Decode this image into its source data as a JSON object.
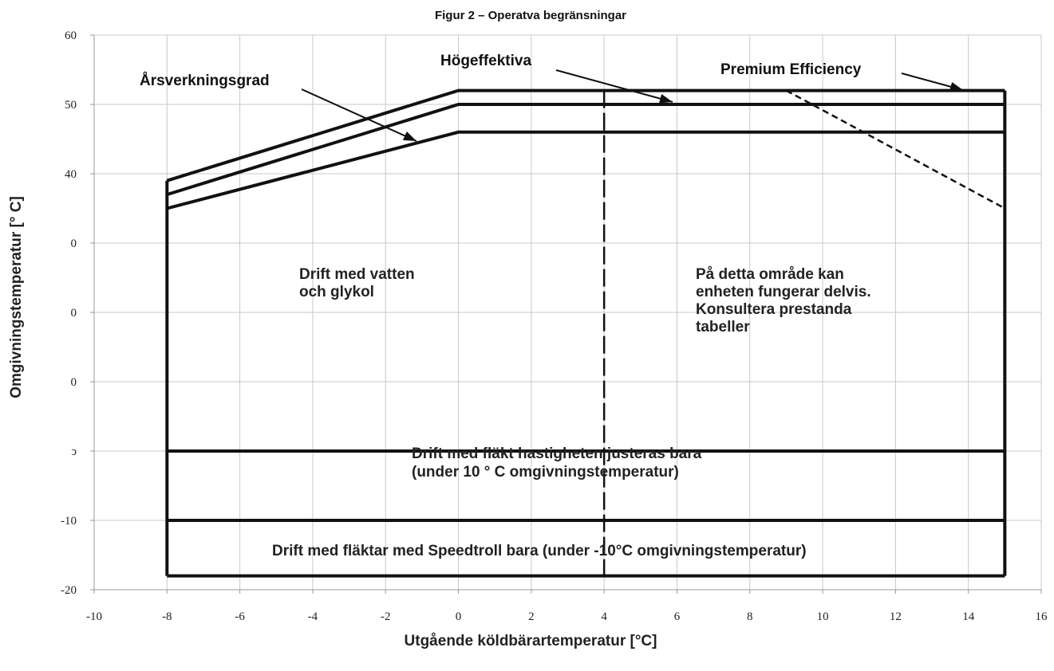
{
  "chart_data": {
    "type": "line",
    "title": "Figur 2 – Operatva begränsningar",
    "xlabel": "Utgående köldbärartemperatur [°C]",
    "ylabel": "Omgivningstemperatur [° C]",
    "xlim": [
      -10,
      16
    ],
    "ylim": [
      -20,
      60
    ],
    "x_ticks": [
      "-10",
      "-8",
      "-6",
      "-4",
      "-2",
      "0",
      "2",
      "4",
      "6",
      "8",
      "10",
      "12",
      "14",
      "16"
    ],
    "y_ticks": [
      "60",
      "50",
      "40",
      "0",
      "0",
      "0",
      "ↄ",
      "-10",
      "-20"
    ],
    "grid": true,
    "series": [
      {
        "name": "Årsverkningsgrad",
        "x": [
          -8,
          0,
          15
        ],
        "y": [
          35,
          46,
          46
        ]
      },
      {
        "name": "Högeffektiva",
        "x": [
          -8,
          0,
          15
        ],
        "y": [
          37,
          50,
          50
        ]
      },
      {
        "name": "Premium Efficiency",
        "x": [
          -8,
          0,
          15
        ],
        "y": [
          39,
          52,
          52
        ]
      },
      {
        "name": "",
        "style": "dashed",
        "x": [
          9,
          15
        ],
        "y": [
          52,
          35
        ]
      }
    ],
    "boundaries": {
      "envelope_bottom": -18,
      "envelope_left": -8,
      "envelope_right": 15,
      "line_glycol": 0,
      "line_speedtroll": -10,
      "partial_operation_x": 4
    },
    "region_labels": [
      {
        "lines": [
          "Drift med vatten",
          "och glykol"
        ]
      },
      {
        "lines": [
          "På detta område kan",
          "enheten fungerar delvis.",
          "Konsultera prestanda",
          "tabeller"
        ]
      },
      {
        "lines": [
          "Drift med fläkt hastigheten justeras bara",
          "(under 10 ° C omgivningstemperatur)"
        ]
      },
      {
        "lines": [
          "Drift med fläktar med Speedtroll bara (under -10°C omgivningstemperatur)"
        ]
      }
    ]
  }
}
